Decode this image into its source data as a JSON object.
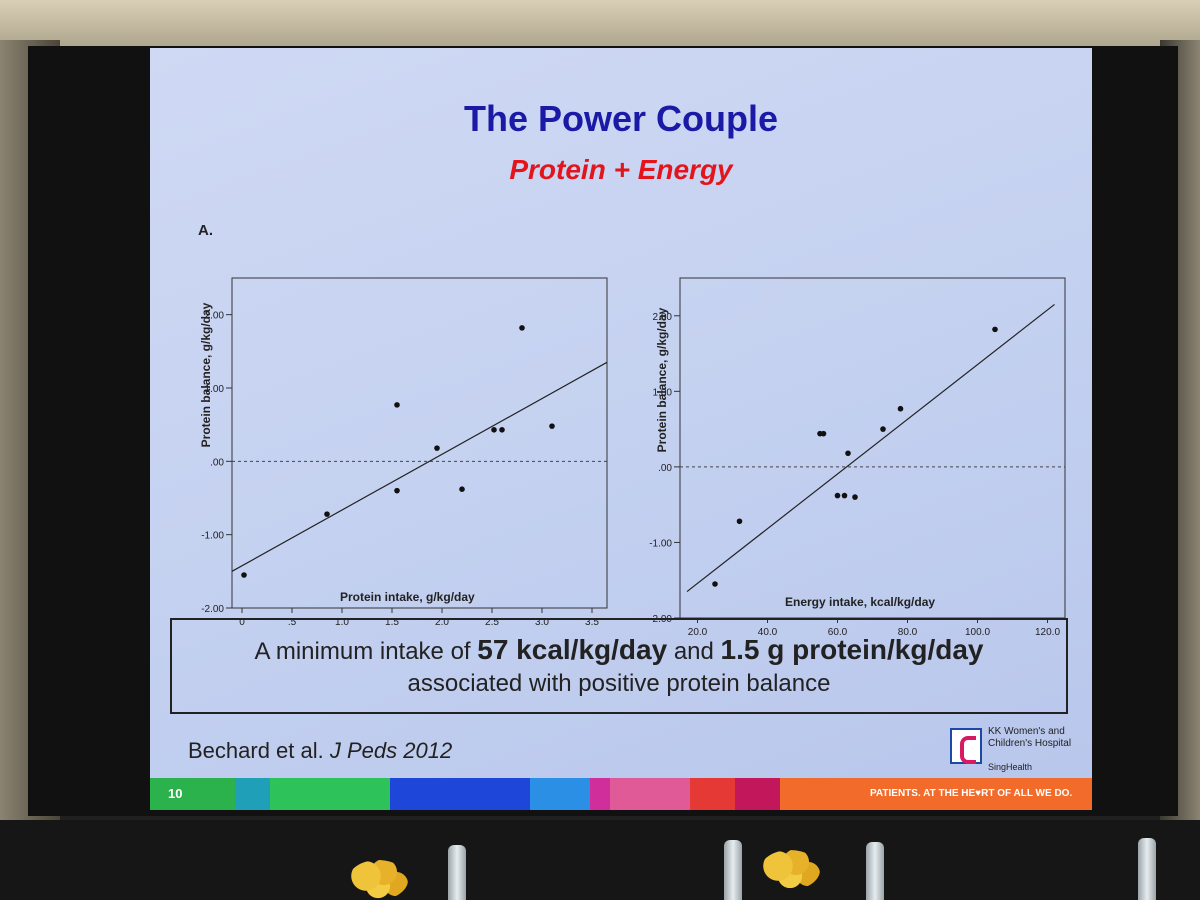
{
  "slide": {
    "title": "The Power Couple",
    "subtitle": "Protein + Energy",
    "panel_label": "A.",
    "callout_line1_pre": "A minimum intake of ",
    "callout_bold1": "57 kcal/kg/day",
    "callout_line1_mid": " and ",
    "callout_bold2": "1.5 g protein/kg/day",
    "callout_line2": "associated with positive protein balance",
    "citation_authors": "Bechard et al. ",
    "citation_journal": "J Peds 2012",
    "logo_name": "KK Women's and Children's Hospital",
    "logo_sub": "SingHealth",
    "slide_number": "10",
    "tagline": "PATIENTS. AT THE HE♥RT OF ALL WE DO.",
    "footer_colors": [
      "#2bb24c",
      "#1f9fb8",
      "#2ec25a",
      "#1e46d8",
      "#2b8fe6",
      "#d02e9a",
      "#e05a98",
      "#e53935",
      "#c2185b",
      "#f26b2a"
    ]
  },
  "chart_data": [
    {
      "type": "scatter",
      "xlabel": "Protein intake, g/kg/day",
      "ylabel": "Protein balance, g/kg/day",
      "xlim": [
        -0.1,
        3.65
      ],
      "ylim": [
        -2.0,
        2.5
      ],
      "xticks": [
        0,
        0.5,
        1.0,
        1.5,
        2.0,
        2.5,
        3.0,
        3.5
      ],
      "xtick_labels": [
        "0",
        ".5",
        "1.0",
        "1.5",
        "2.0",
        "2.5",
        "3.0",
        "3.5"
      ],
      "yticks": [
        -2.0,
        -1.0,
        0.0,
        1.0,
        2.0
      ],
      "ytick_labels": [
        "-2.00",
        "-1.00",
        ".00",
        "1.00",
        "2.00"
      ],
      "points": [
        {
          "x": 0.02,
          "y": -1.55
        },
        {
          "x": 0.85,
          "y": -0.72
        },
        {
          "x": 1.55,
          "y": 0.77
        },
        {
          "x": 1.55,
          "y": -0.4
        },
        {
          "x": 1.95,
          "y": 0.18
        },
        {
          "x": 2.2,
          "y": -0.38
        },
        {
          "x": 2.52,
          "y": 0.43
        },
        {
          "x": 2.6,
          "y": 0.43
        },
        {
          "x": 2.8,
          "y": 1.82
        },
        {
          "x": 3.1,
          "y": 0.48
        }
      ],
      "fit_line": {
        "x": [
          -0.1,
          3.65
        ],
        "y": [
          -1.5,
          1.35
        ]
      },
      "reference_line_y": 0.0
    },
    {
      "type": "scatter",
      "xlabel": "Energy intake, kcal/kg/day",
      "ylabel": "Protein balance, g/kg/day",
      "xlim": [
        15,
        125
      ],
      "ylim": [
        -2.0,
        2.5
      ],
      "xticks": [
        20,
        40,
        60,
        80,
        100,
        120
      ],
      "xtick_labels": [
        "20.0",
        "40.0",
        "60.0",
        "80.0",
        "100.0",
        "120.0"
      ],
      "yticks": [
        -2.0,
        -1.0,
        0.0,
        1.0,
        2.0
      ],
      "ytick_labels": [
        "-2.00",
        "-1.00",
        ".00",
        "1.00",
        "2.00"
      ],
      "points": [
        {
          "x": 25,
          "y": -1.55
        },
        {
          "x": 32,
          "y": -0.72
        },
        {
          "x": 55,
          "y": 0.44
        },
        {
          "x": 56,
          "y": 0.44
        },
        {
          "x": 60,
          "y": -0.38
        },
        {
          "x": 62,
          "y": -0.38
        },
        {
          "x": 63,
          "y": 0.18
        },
        {
          "x": 65,
          "y": -0.4
        },
        {
          "x": 73,
          "y": 0.5
        },
        {
          "x": 78,
          "y": 0.77
        },
        {
          "x": 105,
          "y": 1.82
        }
      ],
      "fit_line": {
        "x": [
          17,
          122
        ],
        "y": [
          -1.65,
          2.15
        ]
      },
      "reference_line_y": 0.0
    }
  ]
}
